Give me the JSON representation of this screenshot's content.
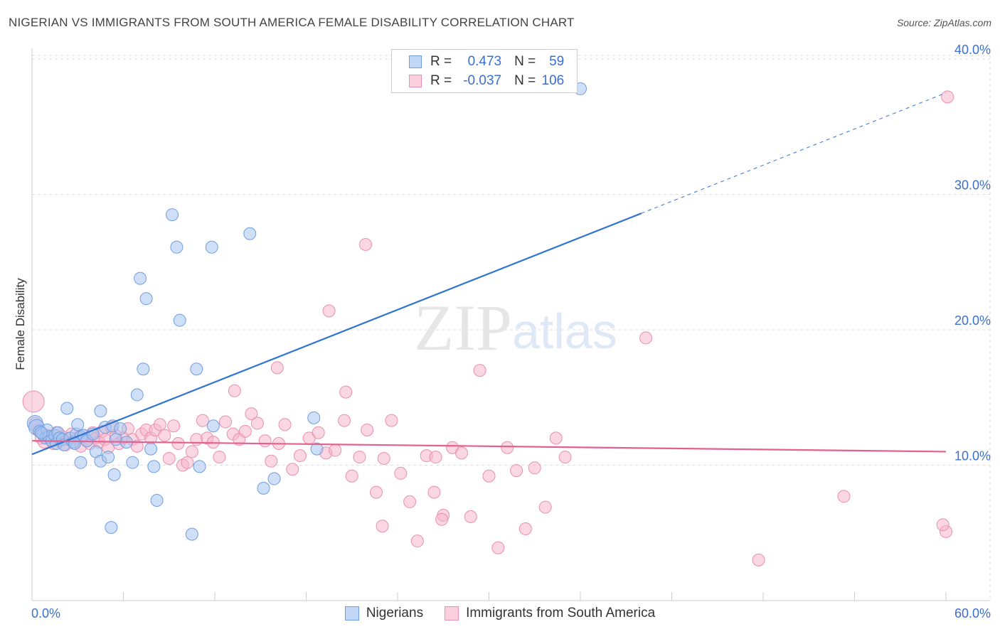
{
  "header": {
    "title": "NIGERIAN VS IMMIGRANTS FROM SOUTH AMERICA FEMALE DISABILITY CORRELATION CHART",
    "source": "Source: ZipAtlas.com"
  },
  "watermark": {
    "zip": "ZIP",
    "atlas": "atlas"
  },
  "legend": {
    "r_label": "R =",
    "n_label": "N =",
    "series1": {
      "r": "0.473",
      "n": "59"
    },
    "series2": {
      "r": "-0.037",
      "n": "106"
    }
  },
  "colors": {
    "series1_fill": "#a8c4f0",
    "series1_stroke": "#6f9ee0",
    "series1_line": "#2f74d0",
    "series2_fill": "#f6b7cb",
    "series2_stroke": "#ea8fad",
    "series2_line": "#e3608f",
    "axis_text": "#3a6fce"
  },
  "chart_data": {
    "type": "scatter",
    "title": "NIGERIAN VS IMMIGRANTS FROM SOUTH AMERICA FEMALE DISABILITY CORRELATION CHART",
    "xlabel": "",
    "ylabel": "Female Disability",
    "xlim": [
      0,
      60
    ],
    "ylim": [
      0,
      40
    ],
    "x_tick_labels": [
      "0.0%",
      "60.0%"
    ],
    "y_ticks": [
      10,
      20,
      30,
      40
    ],
    "y_tick_labels": [
      "10.0%",
      "20.0%",
      "30.0%",
      "40.0%"
    ],
    "grid": true,
    "series": [
      {
        "name": "Nigerians",
        "r": 0.473,
        "n": 59,
        "trend": {
          "x0": 0,
          "y0": 10.8,
          "x1": 40,
          "y1": 28.6,
          "dash_to_x": 60,
          "dash_to_y": 37.5
        },
        "points": [
          [
            0.2,
            13.1
          ],
          [
            0.3,
            12.8
          ],
          [
            0.5,
            12.5
          ],
          [
            0.7,
            12.3
          ],
          [
            0.9,
            12.0
          ],
          [
            1.0,
            12.6
          ],
          [
            1.1,
            12.1
          ],
          [
            1.3,
            11.8
          ],
          [
            1.5,
            12.2
          ],
          [
            1.6,
            11.6
          ],
          [
            1.7,
            12.4
          ],
          [
            1.8,
            12.0
          ],
          [
            2.0,
            11.9
          ],
          [
            2.1,
            11.5
          ],
          [
            2.3,
            14.2
          ],
          [
            2.5,
            12.0
          ],
          [
            2.7,
            11.7
          ],
          [
            2.9,
            12.3
          ],
          [
            3.0,
            13.0
          ],
          [
            3.2,
            12.1
          ],
          [
            3.4,
            12.2
          ],
          [
            3.6,
            11.8
          ],
          [
            3.2,
            10.2
          ],
          [
            4.0,
            12.3
          ],
          [
            4.2,
            11.0
          ],
          [
            4.5,
            14.0
          ],
          [
            4.8,
            12.8
          ],
          [
            4.5,
            10.3
          ],
          [
            5.0,
            10.6
          ],
          [
            5.3,
            12.9
          ],
          [
            5.5,
            11.9
          ],
          [
            5.8,
            12.7
          ],
          [
            6.2,
            11.7
          ],
          [
            6.6,
            10.2
          ],
          [
            6.9,
            15.2
          ],
          [
            7.3,
            17.1
          ],
          [
            7.1,
            23.8
          ],
          [
            7.5,
            22.3
          ],
          [
            7.8,
            11.2
          ],
          [
            8.0,
            9.9
          ],
          [
            8.2,
            7.4
          ],
          [
            9.2,
            28.5
          ],
          [
            9.5,
            26.1
          ],
          [
            9.7,
            20.7
          ],
          [
            10.5,
            4.9
          ],
          [
            10.8,
            17.1
          ],
          [
            11.0,
            9.9
          ],
          [
            11.8,
            26.1
          ],
          [
            11.9,
            12.9
          ],
          [
            14.3,
            27.1
          ],
          [
            15.2,
            8.3
          ],
          [
            15.9,
            9.0
          ],
          [
            18.5,
            13.5
          ],
          [
            18.7,
            11.2
          ],
          [
            36.0,
            37.8
          ],
          [
            5.2,
            5.4
          ],
          [
            5.4,
            9.3
          ],
          [
            2.8,
            11.6
          ],
          [
            0.6,
            12.4
          ]
        ]
      },
      {
        "name": "Immigrants from South America",
        "r": -0.037,
        "n": 106,
        "trend": {
          "x0": 0,
          "y0": 11.8,
          "x1": 60,
          "y1": 11.0
        },
        "points": [
          [
            0.1,
            14.7
          ],
          [
            0.2,
            13.1
          ],
          [
            0.4,
            12.6
          ],
          [
            0.6,
            12.0
          ],
          [
            0.8,
            11.7
          ],
          [
            1.0,
            12.2
          ],
          [
            1.2,
            11.9
          ],
          [
            1.4,
            11.6
          ],
          [
            1.6,
            12.4
          ],
          [
            1.8,
            11.8
          ],
          [
            2.0,
            12.1
          ],
          [
            2.2,
            11.5
          ],
          [
            2.4,
            11.9
          ],
          [
            2.6,
            12.3
          ],
          [
            2.8,
            11.7
          ],
          [
            3.0,
            12.0
          ],
          [
            3.2,
            11.4
          ],
          [
            3.4,
            12.2
          ],
          [
            3.6,
            11.8
          ],
          [
            3.8,
            11.6
          ],
          [
            4.0,
            12.4
          ],
          [
            4.2,
            12.0
          ],
          [
            4.4,
            11.7
          ],
          [
            4.6,
            12.5
          ],
          [
            4.8,
            11.9
          ],
          [
            5.0,
            11.3
          ],
          [
            5.2,
            12.8
          ],
          [
            5.5,
            12.2
          ],
          [
            5.7,
            11.6
          ],
          [
            6.0,
            12.0
          ],
          [
            6.3,
            12.7
          ],
          [
            6.6,
            11.9
          ],
          [
            6.9,
            11.4
          ],
          [
            7.2,
            12.3
          ],
          [
            7.5,
            12.6
          ],
          [
            7.8,
            12.0
          ],
          [
            8.1,
            12.6
          ],
          [
            8.4,
            13.0
          ],
          [
            8.7,
            12.2
          ],
          [
            9.0,
            10.5
          ],
          [
            9.3,
            12.9
          ],
          [
            9.6,
            11.6
          ],
          [
            9.9,
            10.0
          ],
          [
            10.2,
            10.2
          ],
          [
            10.5,
            11.0
          ],
          [
            10.8,
            11.9
          ],
          [
            11.2,
            13.3
          ],
          [
            11.5,
            12.0
          ],
          [
            11.9,
            11.7
          ],
          [
            12.3,
            10.6
          ],
          [
            12.7,
            13.2
          ],
          [
            13.2,
            12.3
          ],
          [
            13.6,
            11.9
          ],
          [
            14.0,
            12.5
          ],
          [
            14.4,
            13.8
          ],
          [
            14.8,
            13.1
          ],
          [
            15.3,
            11.8
          ],
          [
            15.7,
            10.3
          ],
          [
            16.2,
            11.6
          ],
          [
            16.6,
            13.0
          ],
          [
            17.1,
            9.7
          ],
          [
            17.6,
            10.7
          ],
          [
            18.2,
            12.0
          ],
          [
            18.8,
            12.4
          ],
          [
            19.3,
            10.9
          ],
          [
            19.9,
            11.1
          ],
          [
            20.5,
            13.3
          ],
          [
            21.0,
            9.2
          ],
          [
            21.5,
            10.6
          ],
          [
            22.0,
            12.6
          ],
          [
            22.6,
            8.0
          ],
          [
            23.1,
            10.5
          ],
          [
            23.6,
            13.3
          ],
          [
            24.2,
            9.4
          ],
          [
            24.8,
            7.3
          ],
          [
            25.3,
            4.4
          ],
          [
            25.9,
            10.7
          ],
          [
            26.4,
            8.0
          ],
          [
            27.0,
            6.3
          ],
          [
            27.6,
            11.3
          ],
          [
            28.2,
            10.9
          ],
          [
            28.8,
            6.2
          ],
          [
            29.4,
            17.0
          ],
          [
            30.0,
            9.2
          ],
          [
            30.6,
            3.9
          ],
          [
            31.2,
            11.3
          ],
          [
            31.8,
            9.6
          ],
          [
            32.4,
            5.3
          ],
          [
            33.0,
            9.8
          ],
          [
            33.7,
            6.9
          ],
          [
            34.4,
            12.0
          ],
          [
            35.0,
            10.6
          ],
          [
            19.5,
            21.4
          ],
          [
            21.9,
            26.3
          ],
          [
            16.1,
            17.2
          ],
          [
            13.3,
            15.5
          ],
          [
            20.6,
            15.4
          ],
          [
            40.3,
            19.4
          ],
          [
            47.7,
            3.0
          ],
          [
            53.3,
            7.7
          ],
          [
            60.0,
            5.1
          ],
          [
            59.8,
            5.6
          ],
          [
            60.1,
            37.2
          ],
          [
            26.9,
            6.0
          ],
          [
            23.0,
            5.5
          ],
          [
            26.5,
            10.6
          ]
        ]
      }
    ]
  },
  "bottom_legend": {
    "series1_label": "Nigerians",
    "series2_label": "Immigrants from South America"
  }
}
